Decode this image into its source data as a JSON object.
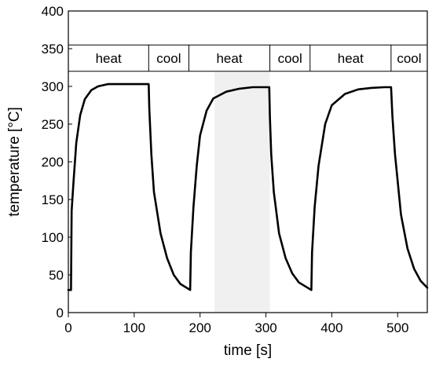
{
  "chart_data": {
    "type": "line",
    "xlabel": "time [s]",
    "ylabel": "temperature  [°C]",
    "xlim": [
      0,
      545
    ],
    "ylim": [
      0,
      400
    ],
    "xticks": [
      0,
      100,
      200,
      300,
      400,
      500
    ],
    "yticks": [
      0,
      50,
      100,
      150,
      200,
      250,
      300,
      350,
      400
    ],
    "grid": false,
    "highlight_band": {
      "x": [
        222,
        306
      ],
      "color": "#f0f0f0"
    },
    "phase_band_y": [
      320,
      355
    ],
    "phases": [
      {
        "label": "heat",
        "start": 0,
        "end": 122
      },
      {
        "label": "cool",
        "start": 122,
        "end": 183
      },
      {
        "label": "heat",
        "start": 183,
        "end": 306
      },
      {
        "label": "cool",
        "start": 306,
        "end": 367
      },
      {
        "label": "heat",
        "start": 367,
        "end": 490
      },
      {
        "label": "cool",
        "start": 490,
        "end": 545
      }
    ],
    "series": [
      {
        "color": "#000000",
        "x": [
          0,
          4,
          5,
          8,
          12,
          18,
          25,
          35,
          45,
          60,
          80,
          100,
          115,
          122,
          123,
          126,
          130,
          140,
          150,
          160,
          170,
          183,
          185,
          186,
          190,
          195,
          200,
          210,
          220,
          240,
          260,
          280,
          300,
          305,
          306,
          308,
          312,
          320,
          330,
          340,
          350,
          367,
          369,
          370,
          374,
          380,
          390,
          400,
          420,
          440,
          460,
          480,
          489,
          490,
          492,
          496,
          505,
          515,
          525,
          535,
          545
        ],
        "y": [
          30,
          30,
          135,
          175,
          225,
          262,
          283,
          295,
          300,
          303,
          303,
          303,
          303,
          303,
          270,
          210,
          160,
          105,
          72,
          50,
          38,
          31,
          30,
          80,
          140,
          195,
          235,
          268,
          284,
          293,
          297,
          299,
          299,
          299,
          260,
          210,
          160,
          105,
          72,
          52,
          40,
          31,
          30,
          80,
          140,
          195,
          250,
          275,
          290,
          296,
          298,
          299,
          299,
          299,
          260,
          210,
          130,
          85,
          58,
          42,
          33
        ]
      }
    ]
  }
}
